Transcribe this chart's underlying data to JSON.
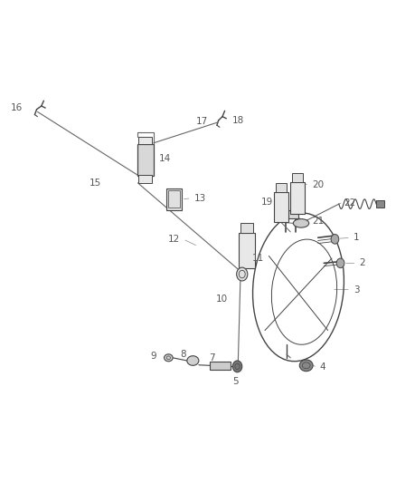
{
  "background_color": "#ffffff",
  "fig_width": 4.38,
  "fig_height": 5.33,
  "dpi": 100,
  "line_color": "#666666",
  "part_color": "#444444",
  "label_color": "#555555",
  "font_size": 7.5,
  "label_positions": {
    "1": [
      0.895,
      0.508,
      "left",
      "center"
    ],
    "2": [
      0.91,
      0.455,
      "left",
      "center"
    ],
    "3": [
      0.895,
      0.4,
      "left",
      "center"
    ],
    "4": [
      0.81,
      0.238,
      "left",
      "center"
    ],
    "5": [
      0.595,
      0.218,
      "center",
      "top"
    ],
    "7": [
      0.535,
      0.248,
      "center",
      "bottom"
    ],
    "8": [
      0.462,
      0.256,
      "center",
      "bottom"
    ],
    "9": [
      0.395,
      0.262,
      "right",
      "center"
    ],
    "10": [
      0.575,
      0.38,
      "right",
      "center"
    ],
    "11": [
      0.638,
      0.465,
      "left",
      "center"
    ],
    "12": [
      0.455,
      0.505,
      "right",
      "center"
    ],
    "13": [
      0.49,
      0.59,
      "left",
      "center"
    ],
    "14": [
      0.4,
      0.672,
      "left",
      "center"
    ],
    "15": [
      0.238,
      0.632,
      "center",
      "top"
    ],
    "16": [
      0.055,
      0.778,
      "right",
      "center"
    ],
    "17": [
      0.51,
      0.74,
      "center",
      "bottom"
    ],
    "18": [
      0.588,
      0.752,
      "left",
      "center"
    ],
    "19": [
      0.69,
      0.582,
      "right",
      "center"
    ],
    "20": [
      0.79,
      0.618,
      "left",
      "center"
    ],
    "21": [
      0.79,
      0.542,
      "left",
      "center"
    ],
    "22": [
      0.87,
      0.58,
      "left",
      "center"
    ]
  }
}
